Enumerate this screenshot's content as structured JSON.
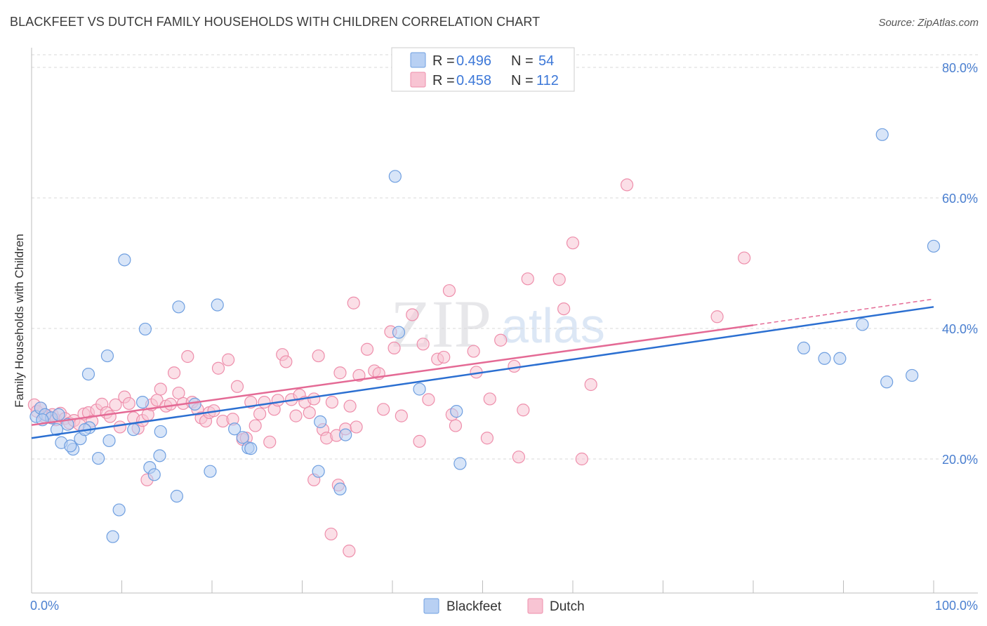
{
  "title": "BLACKFEET VS DUTCH FAMILY HOUSEHOLDS WITH CHILDREN CORRELATION CHART",
  "source": "Source: ZipAtlas.com",
  "watermark": {
    "zip": "ZIP",
    "atlas": "atlas"
  },
  "legend": {
    "rows": [
      {
        "r_label": "R =",
        "r_value": "0.496",
        "n_label": "N =",
        "n_value": "54"
      },
      {
        "r_label": "R =",
        "r_value": "0.458",
        "n_label": "N =",
        "n_value": "112"
      }
    ]
  },
  "colors": {
    "blackfeet_fill": "#b8d0f3",
    "blackfeet_stroke": "#6f9fe0",
    "blackfeet_line": "#2b6fd1",
    "dutch_fill": "#f8c4d3",
    "dutch_stroke": "#ee8eab",
    "dutch_line": "#e46a95",
    "grid": "#d9d9d9",
    "axis_text": "#4a7fd0"
  },
  "chart_data": {
    "type": "scatter",
    "title": "BLACKFEET VS DUTCH FAMILY HOUSEHOLDS WITH CHILDREN CORRELATION CHART",
    "xlabel": "",
    "ylabel": "Family Households with Children",
    "xlim": [
      0,
      100
    ],
    "ylim": [
      0,
      82
    ],
    "x_tick_labels": [
      "0.0%",
      "100.0%"
    ],
    "y_ticks": [
      20,
      40,
      60,
      80
    ],
    "y_tick_labels": [
      "20.0%",
      "40.0%",
      "60.0%",
      "80.0%"
    ],
    "grid": true,
    "legend_position": "top-center",
    "series": [
      {
        "name": "Blackfeet",
        "r": 0.496,
        "n": 54,
        "trend": {
          "x": [
            0,
            100
          ],
          "y": [
            23.2,
            43.3
          ]
        },
        "points": [
          [
            0.5,
            26.5
          ],
          [
            1.0,
            27.8
          ],
          [
            1.5,
            26.8
          ],
          [
            2.2,
            26.3
          ],
          [
            3.0,
            26.8
          ],
          [
            2.8,
            24.5
          ],
          [
            4.0,
            25.3
          ],
          [
            3.3,
            22.5
          ],
          [
            4.6,
            21.5
          ],
          [
            4.3,
            22.0
          ],
          [
            5.4,
            23.1
          ],
          [
            6.4,
            24.8
          ],
          [
            5.9,
            24.5
          ],
          [
            6.3,
            33.0
          ],
          [
            7.4,
            20.1
          ],
          [
            8.4,
            35.8
          ],
          [
            8.6,
            22.8
          ],
          [
            10.3,
            50.5
          ],
          [
            11.3,
            24.5
          ],
          [
            12.3,
            28.7
          ],
          [
            12.6,
            39.9
          ],
          [
            13.1,
            18.7
          ],
          [
            13.6,
            17.6
          ],
          [
            14.3,
            24.2
          ],
          [
            14.2,
            20.5
          ],
          [
            16.3,
            43.3
          ],
          [
            16.1,
            14.3
          ],
          [
            18.1,
            28.4
          ],
          [
            19.8,
            18.1
          ],
          [
            20.6,
            43.6
          ],
          [
            9.7,
            12.2
          ],
          [
            9.0,
            8.1
          ],
          [
            22.5,
            24.6
          ],
          [
            23.4,
            23.3
          ],
          [
            24.0,
            21.7
          ],
          [
            24.3,
            21.6
          ],
          [
            32.0,
            25.7
          ],
          [
            31.8,
            18.1
          ],
          [
            34.8,
            23.7
          ],
          [
            34.2,
            15.4
          ],
          [
            40.3,
            63.3
          ],
          [
            40.7,
            39.4
          ],
          [
            43.0,
            30.7
          ],
          [
            47.1,
            27.3
          ],
          [
            47.5,
            19.3
          ],
          [
            85.6,
            37.0
          ],
          [
            87.9,
            35.4
          ],
          [
            89.6,
            35.4
          ],
          [
            92.1,
            40.6
          ],
          [
            94.3,
            69.7
          ],
          [
            94.8,
            31.8
          ],
          [
            97.6,
            32.8
          ],
          [
            100.0,
            52.6
          ],
          [
            1.2,
            26.0
          ]
        ]
      },
      {
        "name": "Dutch",
        "r": 0.458,
        "n": 112,
        "trend": {
          "x": [
            0,
            80,
            100
          ],
          "y": [
            25.2,
            40.5,
            44.5
          ]
        },
        "points": [
          [
            0.3,
            28.3
          ],
          [
            0.6,
            27.3
          ],
          [
            1.0,
            27.8
          ],
          [
            1.4,
            26.5
          ],
          [
            1.8,
            26.6
          ],
          [
            2.3,
            26.8
          ],
          [
            2.7,
            26.0
          ],
          [
            3.2,
            27.0
          ],
          [
            3.7,
            26.2
          ],
          [
            4.2,
            25.5
          ],
          [
            4.7,
            25.9
          ],
          [
            5.3,
            25.3
          ],
          [
            5.8,
            26.9
          ],
          [
            6.3,
            27.1
          ],
          [
            6.7,
            25.8
          ],
          [
            7.2,
            27.5
          ],
          [
            7.8,
            28.4
          ],
          [
            8.3,
            27.1
          ],
          [
            8.7,
            26.5
          ],
          [
            9.3,
            28.3
          ],
          [
            9.8,
            24.9
          ],
          [
            10.3,
            29.5
          ],
          [
            10.8,
            28.5
          ],
          [
            11.3,
            26.3
          ],
          [
            11.8,
            24.7
          ],
          [
            12.3,
            25.9
          ],
          [
            12.9,
            26.8
          ],
          [
            13.3,
            28.3
          ],
          [
            13.9,
            29.0
          ],
          [
            14.3,
            30.7
          ],
          [
            14.9,
            28.1
          ],
          [
            15.4,
            28.4
          ],
          [
            15.8,
            33.2
          ],
          [
            16.3,
            30.1
          ],
          [
            16.8,
            28.5
          ],
          [
            17.3,
            35.7
          ],
          [
            17.8,
            28.7
          ],
          [
            18.4,
            27.6
          ],
          [
            18.8,
            26.3
          ],
          [
            19.3,
            25.8
          ],
          [
            19.7,
            27.1
          ],
          [
            20.2,
            27.4
          ],
          [
            20.7,
            33.9
          ],
          [
            21.2,
            25.8
          ],
          [
            21.8,
            35.2
          ],
          [
            22.3,
            26.1
          ],
          [
            22.8,
            31.1
          ],
          [
            23.4,
            23.0
          ],
          [
            23.8,
            23.2
          ],
          [
            24.3,
            28.7
          ],
          [
            24.8,
            25.1
          ],
          [
            25.3,
            26.9
          ],
          [
            25.8,
            28.7
          ],
          [
            26.4,
            22.6
          ],
          [
            26.9,
            27.6
          ],
          [
            27.3,
            29.0
          ],
          [
            27.8,
            36.0
          ],
          [
            28.2,
            34.9
          ],
          [
            28.8,
            29.1
          ],
          [
            29.3,
            26.6
          ],
          [
            29.7,
            29.8
          ],
          [
            30.3,
            28.7
          ],
          [
            30.8,
            27.1
          ],
          [
            31.3,
            29.2
          ],
          [
            31.8,
            35.8
          ],
          [
            32.3,
            24.5
          ],
          [
            32.7,
            23.2
          ],
          [
            33.3,
            28.7
          ],
          [
            33.8,
            23.6
          ],
          [
            34.2,
            33.2
          ],
          [
            34.8,
            24.6
          ],
          [
            35.3,
            28.1
          ],
          [
            35.7,
            43.9
          ],
          [
            36.3,
            32.8
          ],
          [
            37.2,
            36.8
          ],
          [
            38.0,
            33.5
          ],
          [
            38.5,
            33.1
          ],
          [
            39.0,
            27.6
          ],
          [
            39.8,
            39.5
          ],
          [
            40.2,
            37.0
          ],
          [
            41.0,
            26.6
          ],
          [
            42.2,
            42.1
          ],
          [
            43.0,
            22.7
          ],
          [
            43.4,
            37.6
          ],
          [
            44.0,
            29.1
          ],
          [
            45.0,
            35.3
          ],
          [
            45.7,
            35.6
          ],
          [
            46.3,
            45.8
          ],
          [
            46.6,
            26.8
          ],
          [
            47.0,
            25.1
          ],
          [
            49.0,
            36.5
          ],
          [
            49.3,
            33.3
          ],
          [
            50.5,
            23.2
          ],
          [
            50.8,
            29.2
          ],
          [
            52.0,
            38.2
          ],
          [
            53.5,
            34.2
          ],
          [
            54.0,
            20.3
          ],
          [
            54.5,
            27.5
          ],
          [
            55.0,
            47.6
          ],
          [
            58.5,
            47.5
          ],
          [
            59.0,
            43.0
          ],
          [
            60.0,
            53.1
          ],
          [
            61.0,
            20.0
          ],
          [
            62.0,
            31.4
          ],
          [
            66.0,
            62.0
          ],
          [
            79.0,
            50.8
          ],
          [
            76.0,
            41.8
          ],
          [
            12.8,
            16.8
          ],
          [
            33.2,
            8.5
          ],
          [
            35.2,
            5.9
          ],
          [
            34.0,
            16.0
          ],
          [
            31.3,
            16.8
          ],
          [
            36.0,
            24.9
          ]
        ]
      }
    ]
  }
}
